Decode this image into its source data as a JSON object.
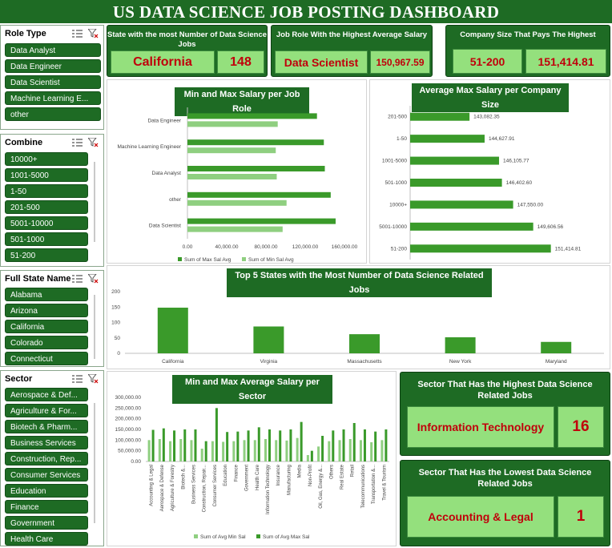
{
  "title": "US DATA SCIENCE JOB POSTING DASHBOARD",
  "colors": {
    "dark_green": "#1e6b24",
    "max_bar": "#3a9a2a",
    "min_bar": "#8fcf80",
    "kpi_fill": "#94e07d",
    "kpi_text": "#c0000b"
  },
  "slicers": {
    "role_type": {
      "title": "Role Type",
      "items": [
        "Data Analyst",
        "Data Engineer",
        "Data Scientist",
        "Machine Learning E...",
        "other"
      ]
    },
    "combine": {
      "title": "Combine",
      "items": [
        "10000+",
        "1001-5000",
        "1-50",
        "201-500",
        "5001-10000",
        "501-1000",
        "51-200"
      ]
    },
    "full_state_name": {
      "title": "Full State Name",
      "items": [
        "Alabama",
        "Arizona",
        "California",
        "Colorado",
        "Connecticut"
      ]
    },
    "sector": {
      "title": "Sector",
      "items": [
        "Aerospace & Def...",
        "Agriculture & For...",
        "Biotech & Pharm...",
        "Business Services",
        "Construction, Rep...",
        "Consumer Services",
        "Education",
        "Finance",
        "Government",
        "Health Care"
      ]
    }
  },
  "kpis": {
    "top_state": {
      "label": "State with the most Number of Data Science Jobs",
      "name": "California",
      "value": "148"
    },
    "top_role": {
      "label": "Job Role With the Highest Average Salary",
      "name": "Data Scientist",
      "value": "150,967.59"
    },
    "top_company": {
      "label": "Company Size That Pays The Highest",
      "name": "51-200",
      "value": "151,414.81"
    },
    "sector_high": {
      "label": "Sector That Has the Highest Data Science Related Jobs",
      "name": "Information Technology",
      "value": "16"
    },
    "sector_low": {
      "label": "Sector That Has the Lowest Data Science Related Jobs",
      "name": "Accounting & Legal",
      "value": "1"
    }
  },
  "chart_data": [
    {
      "type": "bar",
      "orientation": "horizontal",
      "title": "Min and Max Salary per Job Role",
      "categories": [
        "Data Engineer",
        "Machine Learning Engineer",
        "Data Analyst",
        "other",
        "Data Scientist"
      ],
      "series": [
        {
          "name": "Sum of Max Sal Avg",
          "values": [
            132000,
            139000,
            140000,
            146000,
            151000
          ]
        },
        {
          "name": "Sum of Min Sal Avg",
          "values": [
            92000,
            90000,
            91000,
            101000,
            97000
          ]
        }
      ],
      "xlim": [
        0,
        160000
      ],
      "xticks": [
        "0.00",
        "40,000.00",
        "80,000.00",
        "120,000.00",
        "160,000.00"
      ],
      "legend": "bottom"
    },
    {
      "type": "bar",
      "orientation": "horizontal",
      "title": "Average Max Salary per Company Size",
      "categories": [
        "201-500",
        "1-50",
        "1001-5000",
        "501-1000",
        "10000+",
        "5001-10000",
        "51-200"
      ],
      "values": [
        143082.35,
        144627.91,
        146105.77,
        146402.6,
        147550.0,
        149606.56,
        151414.81
      ],
      "labels": [
        "143,082.35",
        "144,627.91",
        "146,105.77",
        "146,402.60",
        "147,550.00",
        "149,606.56",
        "151,414.81"
      ]
    },
    {
      "type": "bar",
      "title": "Top 5 States with the Most Number of Data Science Related Jobs",
      "categories": [
        "California",
        "Virginia",
        "Massachusetts",
        "New York",
        "Maryland"
      ],
      "values": [
        148,
        87,
        62,
        52,
        37
      ],
      "ylim": [
        0,
        200
      ],
      "yticks": [
        "0",
        "50",
        "100",
        "150",
        "200"
      ]
    },
    {
      "type": "bar",
      "title": "Min and Max Average Salary per Sector",
      "categories": [
        "Accounting & Legal",
        "Aerospace & Defense",
        "Agriculture & Forestry",
        "Biotech &...",
        "Business Services",
        "Construction, Repair...",
        "Consumer Services",
        "Education",
        "Finance",
        "Government",
        "Health Care",
        "Information Technology",
        "Insurance",
        "Manufacturing",
        "Media",
        "Non-Profit",
        "Oil, Gas, Energy &...",
        "Others",
        "Real Estate",
        "Retail",
        "Telecommunications",
        "Transportation &...",
        "Travel & Tourism"
      ],
      "series": [
        {
          "name": "Sum of Avg Min Sal",
          "values": [
            100000,
            105000,
            95000,
            105000,
            100000,
            60000,
            95000,
            92000,
            95000,
            100000,
            100000,
            105000,
            100000,
            98000,
            110000,
            30000,
            70000,
            95000,
            100000,
            105000,
            100000,
            90000,
            100000
          ]
        },
        {
          "name": "Sum of Avg Max Sal",
          "values": [
            148000,
            155000,
            145000,
            150000,
            150000,
            95000,
            250000,
            138000,
            140000,
            145000,
            160000,
            150000,
            145000,
            150000,
            185000,
            50000,
            120000,
            145000,
            150000,
            180000,
            150000,
            140000,
            150000
          ]
        }
      ],
      "ylim": [
        0,
        300000
      ],
      "yticks": [
        "0.00",
        "50,000.00",
        "100,000.00",
        "150,000.00",
        "200,000.00",
        "250,000.00",
        "300,000.00"
      ],
      "legend": "bottom"
    }
  ]
}
